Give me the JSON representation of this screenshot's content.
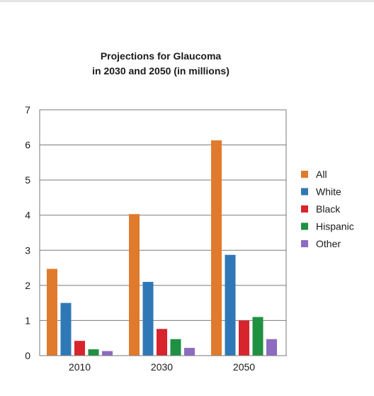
{
  "chart_data": {
    "type": "bar",
    "title": "Projections for Glaucoma",
    "subtitle": "in 2030 and 2050 (in millions)",
    "xlabel": "",
    "ylabel": "",
    "categories": [
      "2010",
      "2030",
      "2050"
    ],
    "ylim": [
      0,
      7
    ],
    "yticks": [
      "0",
      "1",
      "2",
      "3",
      "4",
      "5",
      "6",
      "7"
    ],
    "grid": true,
    "legend_position": "right",
    "series": [
      {
        "name": "All",
        "color": "#e07b2d",
        "values": [
          2.47,
          4.03,
          6.13
        ]
      },
      {
        "name": "White",
        "color": "#2f78b7",
        "values": [
          1.5,
          2.1,
          2.87
        ]
      },
      {
        "name": "Black",
        "color": "#d8242c",
        "values": [
          0.42,
          0.76,
          1.0
        ]
      },
      {
        "name": "Hispanic",
        "color": "#1f9142",
        "values": [
          0.18,
          0.47,
          1.1
        ]
      },
      {
        "name": "Other",
        "color": "#8c6bc0",
        "values": [
          0.13,
          0.22,
          0.47
        ]
      }
    ]
  }
}
